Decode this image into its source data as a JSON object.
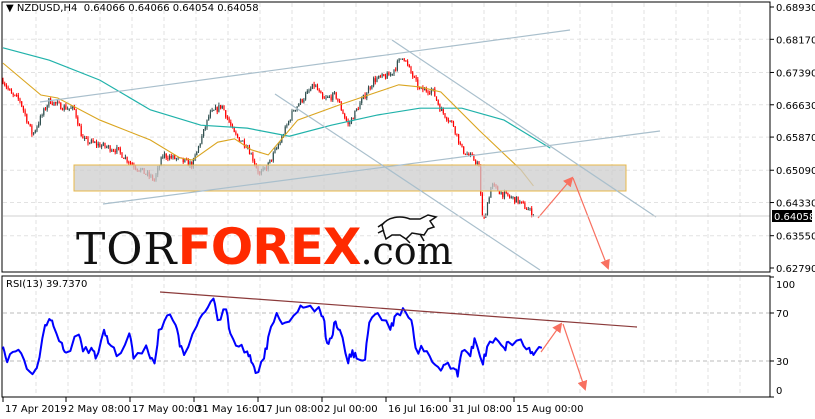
{
  "header": {
    "dropdown_icon": "triangle-down-icon",
    "symbol": "NZDUSD,H4",
    "ohlc": "0.64066 0.64066 0.64054 0.64058"
  },
  "logo": {
    "part1": "TOR",
    "part2": "FOREX",
    "part3": ".com",
    "icon": "bull-icon"
  },
  "rsi_header": "RSI(13) 39.7370",
  "colors": {
    "up": "#2f4f4f",
    "down": "#ff0000",
    "ma_fast": "#daa520",
    "ma_slow": "#20b2aa",
    "rsi": "#0000ff",
    "trendline": "#a9bfcc",
    "arrow": "#f87060",
    "rsi_trendline": "#8b3a3a",
    "zone_border": "#e8b84a"
  },
  "chart_data": [
    {
      "type": "candlestick",
      "title": "NZDUSD,H4",
      "current_price": "0.64058",
      "y_ticks": [
        "0.68930",
        "0.68170",
        "0.67390",
        "0.66630",
        "0.65870",
        "0.65090",
        "0.64330",
        "0.63550",
        "0.62790"
      ],
      "ylim": [
        0.6279,
        0.6893
      ],
      "x_ticks": [
        "17 Apr 2019",
        "2 May 08:00",
        "17 May 00:00",
        "31 May 16:00",
        "17 Jun 08:00",
        "2 Jul 00:00",
        "16 Jul 16:00",
        "31 Jul 08:00",
        "15 Aug 00:00"
      ],
      "grid": true,
      "price_path": [
        [
          "2019-04-17",
          0.6721
        ],
        [
          "2019-04-19",
          0.6686
        ],
        [
          "2019-04-21",
          0.6674
        ],
        [
          "2019-04-24",
          0.6592
        ],
        [
          "2019-04-28",
          0.6674
        ],
        [
          "2019-04-30",
          0.6662
        ],
        [
          "2019-05-04",
          0.6651
        ],
        [
          "2019-05-06",
          0.658
        ],
        [
          "2019-05-10",
          0.6568
        ],
        [
          "2019-05-14",
          0.6557
        ],
        [
          "2019-05-18",
          0.6521
        ],
        [
          "2019-05-23",
          0.6486
        ],
        [
          "2019-05-25",
          0.6545
        ],
        [
          "2019-05-29",
          0.6533
        ],
        [
          "2019-06-01",
          0.6521
        ],
        [
          "2019-06-05",
          0.6639
        ],
        [
          "2019-06-08",
          0.6662
        ],
        [
          "2019-06-11",
          0.6592
        ],
        [
          "2019-06-14",
          0.6568
        ],
        [
          "2019-06-17",
          0.6498
        ],
        [
          "2019-06-19",
          0.6521
        ],
        [
          "2019-06-22",
          0.658
        ],
        [
          "2019-06-25",
          0.6651
        ],
        [
          "2019-06-30",
          0.671
        ],
        [
          "2019-07-02",
          0.6674
        ],
        [
          "2019-07-05",
          0.6686
        ],
        [
          "2019-07-08",
          0.6615
        ],
        [
          "2019-07-10",
          0.6651
        ],
        [
          "2019-07-14",
          0.6721
        ],
        [
          "2019-07-18",
          0.6733
        ],
        [
          "2019-07-21",
          0.678
        ],
        [
          "2019-07-22",
          0.6756
        ],
        [
          "2019-07-25",
          0.6698
        ],
        [
          "2019-07-28",
          0.6698
        ],
        [
          "2019-07-30",
          0.6651
        ],
        [
          "2019-08-02",
          0.6615
        ],
        [
          "2019-08-04",
          0.6557
        ],
        [
          "2019-08-07",
          0.6533
        ],
        [
          "2019-08-08",
          0.6521
        ],
        [
          "2019-08-09",
          0.638
        ],
        [
          "2019-08-11",
          0.6474
        ],
        [
          "2019-08-14",
          0.6451
        ],
        [
          "2019-08-17",
          0.6439
        ],
        [
          "2019-08-21",
          0.6406
        ]
      ],
      "ma_fast": [
        [
          "2019-04-17",
          0.6761
        ],
        [
          "2019-04-26",
          0.6686
        ],
        [
          "2019-04-30",
          0.6679
        ],
        [
          "2019-05-10",
          0.6627
        ],
        [
          "2019-05-22",
          0.658
        ],
        [
          "2019-05-29",
          0.6538
        ],
        [
          "2019-06-01",
          0.6533
        ],
        [
          "2019-06-07",
          0.6575
        ],
        [
          "2019-06-11",
          0.6583
        ],
        [
          "2019-06-15",
          0.6557
        ],
        [
          "2019-06-19",
          0.6545
        ],
        [
          "2019-06-26",
          0.6627
        ],
        [
          "2019-07-06",
          0.6663
        ],
        [
          "2019-07-20",
          0.671
        ],
        [
          "2019-07-25",
          0.6705
        ],
        [
          "2019-07-30",
          0.6693
        ],
        [
          "2019-08-08",
          0.6604
        ],
        [
          "2019-08-18",
          0.651
        ],
        [
          "2019-08-21",
          0.6472
        ]
      ],
      "ma_slow": [
        [
          "2019-04-17",
          0.6797
        ],
        [
          "2019-04-28",
          0.6768
        ],
        [
          "2019-05-10",
          0.6721
        ],
        [
          "2019-05-22",
          0.6651
        ],
        [
          "2019-06-03",
          0.6615
        ],
        [
          "2019-06-14",
          0.6608
        ],
        [
          "2019-06-24",
          0.6589
        ],
        [
          "2019-07-04",
          0.6615
        ],
        [
          "2019-07-15",
          0.6639
        ],
        [
          "2019-07-25",
          0.6655
        ],
        [
          "2019-08-04",
          0.6655
        ],
        [
          "2019-08-14",
          0.6627
        ],
        [
          "2019-08-25",
          0.6561
        ]
      ]
    },
    {
      "type": "line",
      "title": "RSI(13) 39.7370",
      "ylim": [
        0,
        100
      ],
      "y_ticks": [
        "100",
        "70",
        "30",
        "0"
      ],
      "levels": [
        70,
        30
      ],
      "series": [
        {
          "name": "RSI(13)",
          "values": [
            [
              "2019-04-17",
              42
            ],
            [
              "2019-04-18",
              29
            ],
            [
              "2019-04-20",
              38
            ],
            [
              "2019-04-22",
              31
            ],
            [
              "2019-04-24",
              19
            ],
            [
              "2019-04-25",
              24
            ],
            [
              "2019-04-27",
              60
            ],
            [
              "2019-04-28",
              65
            ],
            [
              "2019-04-29",
              59
            ],
            [
              "2019-05-01",
              45
            ],
            [
              "2019-05-02",
              37
            ],
            [
              "2019-05-05",
              52
            ],
            [
              "2019-05-06",
              38
            ],
            [
              "2019-05-08",
              41
            ],
            [
              "2019-05-09",
              32
            ],
            [
              "2019-05-11",
              56
            ],
            [
              "2019-05-12",
              45
            ],
            [
              "2019-05-14",
              34
            ],
            [
              "2019-05-17",
              53
            ],
            [
              "2019-05-18",
              32
            ],
            [
              "2019-05-21",
              43
            ],
            [
              "2019-05-22",
              32
            ],
            [
              "2019-05-23",
              28
            ],
            [
              "2019-05-24",
              56
            ],
            [
              "2019-05-26",
              68
            ],
            [
              "2019-05-28",
              60
            ],
            [
              "2019-05-29",
              42
            ],
            [
              "2019-05-30",
              35
            ],
            [
              "2019-06-02",
              59
            ],
            [
              "2019-06-04",
              71
            ],
            [
              "2019-06-06",
              82
            ],
            [
              "2019-06-07",
              64
            ],
            [
              "2019-06-09",
              73
            ],
            [
              "2019-06-10",
              53
            ],
            [
              "2019-06-12",
              42
            ],
            [
              "2019-06-14",
              38
            ],
            [
              "2019-06-15",
              29
            ],
            [
              "2019-06-16",
              20
            ],
            [
              "2019-06-18",
              32
            ],
            [
              "2019-06-19",
              50
            ],
            [
              "2019-06-21",
              70
            ],
            [
              "2019-06-23",
              62
            ],
            [
              "2019-06-26",
              71
            ],
            [
              "2019-06-28",
              75
            ],
            [
              "2019-07-01",
              75
            ],
            [
              "2019-07-02",
              67
            ],
            [
              "2019-07-03",
              45
            ],
            [
              "2019-07-04",
              49
            ],
            [
              "2019-07-05",
              63
            ],
            [
              "2019-07-06",
              56
            ],
            [
              "2019-07-08",
              28
            ],
            [
              "2019-07-09",
              39
            ],
            [
              "2019-07-10",
              32
            ],
            [
              "2019-07-12",
              31
            ],
            [
              "2019-07-13",
              62
            ],
            [
              "2019-07-15",
              70
            ],
            [
              "2019-07-18",
              56
            ],
            [
              "2019-07-19",
              67
            ],
            [
              "2019-07-21",
              74
            ],
            [
              "2019-07-23",
              64
            ],
            [
              "2019-07-24",
              41
            ],
            [
              "2019-07-26",
              38
            ],
            [
              "2019-07-28",
              29
            ],
            [
              "2019-07-30",
              22
            ],
            [
              "2019-07-31",
              27
            ],
            [
              "2019-08-02",
              24
            ],
            [
              "2019-08-03",
              17
            ],
            [
              "2019-08-04",
              38
            ],
            [
              "2019-08-06",
              34
            ],
            [
              "2019-08-07",
              49
            ],
            [
              "2019-08-09",
              27
            ],
            [
              "2019-08-10",
              42
            ],
            [
              "2019-08-12",
              49
            ],
            [
              "2019-08-14",
              41
            ],
            [
              "2019-08-15",
              46
            ],
            [
              "2019-08-18",
              48
            ],
            [
              "2019-08-20",
              41
            ],
            [
              "2019-08-21",
              35
            ],
            [
              "2019-08-23",
              41
            ]
          ]
        }
      ]
    }
  ]
}
